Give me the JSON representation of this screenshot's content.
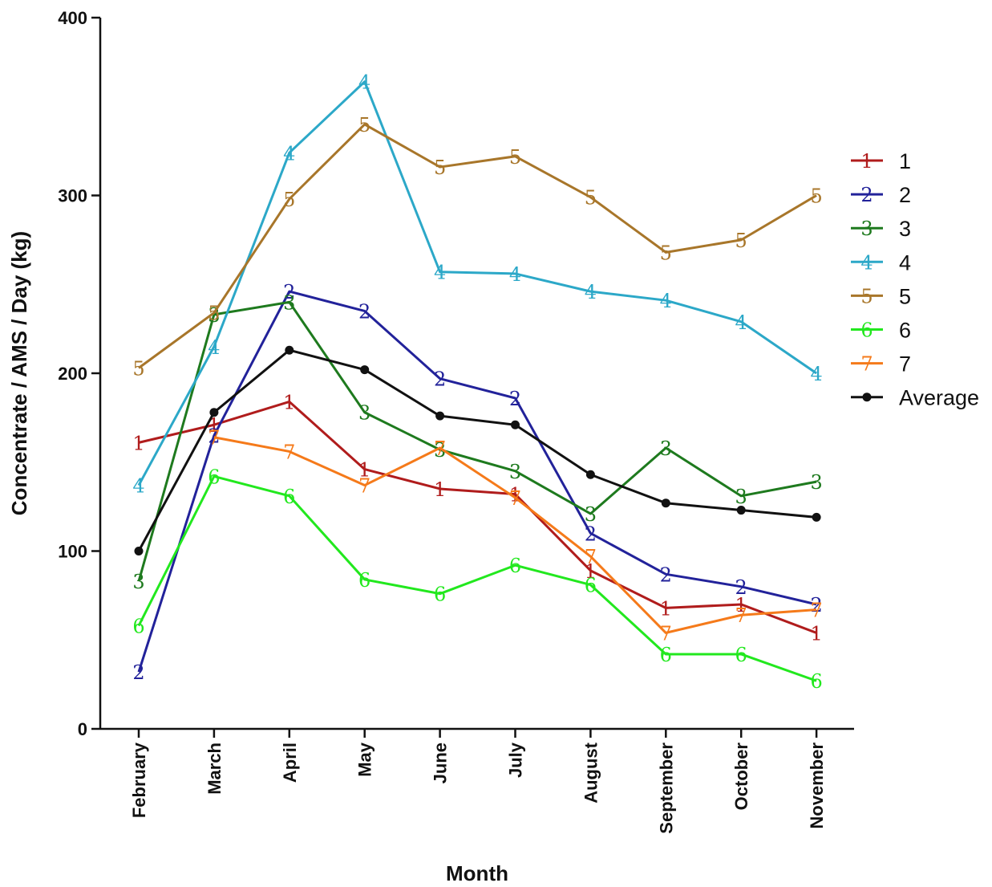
{
  "chart_data": {
    "type": "line",
    "xlabel": "Month",
    "ylabel": "Concentrate / AMS / Day (kg)",
    "ylim": [
      0,
      400
    ],
    "yticks": [
      0,
      100,
      200,
      300,
      400
    ],
    "grid": false,
    "legend_position": "right",
    "categories": [
      "February",
      "March",
      "April",
      "May",
      "June",
      "July",
      "August",
      "September",
      "October",
      "November"
    ],
    "series": [
      {
        "name": "1",
        "marker": "1",
        "color": "#b01c1c",
        "values": [
          161,
          171,
          184,
          146,
          135,
          132,
          89,
          68,
          70,
          54
        ]
      },
      {
        "name": "2",
        "marker": "2",
        "color": "#22229a",
        "values": [
          32,
          165,
          246,
          235,
          197,
          186,
          110,
          87,
          80,
          70
        ]
      },
      {
        "name": "3",
        "marker": "3",
        "color": "#1e7a1e",
        "values": [
          83,
          233,
          240,
          178,
          157,
          145,
          121,
          158,
          131,
          139
        ]
      },
      {
        "name": "4",
        "marker": "4",
        "color": "#2ca8c8",
        "values": [
          137,
          215,
          324,
          364,
          257,
          256,
          246,
          241,
          229,
          200
        ]
      },
      {
        "name": "5",
        "marker": "5",
        "color": "#a8762a",
        "values": [
          203,
          234,
          298,
          340,
          316,
          322,
          299,
          268,
          275,
          300
        ]
      },
      {
        "name": "6",
        "marker": "6",
        "color": "#22e81e",
        "values": [
          58,
          142,
          131,
          84,
          76,
          92,
          81,
          42,
          42,
          27
        ]
      },
      {
        "name": "7",
        "marker": "7",
        "color": "#f57a1a",
        "values": [
          null,
          164,
          156,
          137,
          158,
          130,
          97,
          54,
          64,
          67
        ]
      },
      {
        "name": "Average",
        "marker": "dot",
        "color": "#111111",
        "values": [
          100,
          178,
          213,
          202,
          176,
          171,
          143,
          127,
          123,
          119
        ]
      }
    ]
  }
}
